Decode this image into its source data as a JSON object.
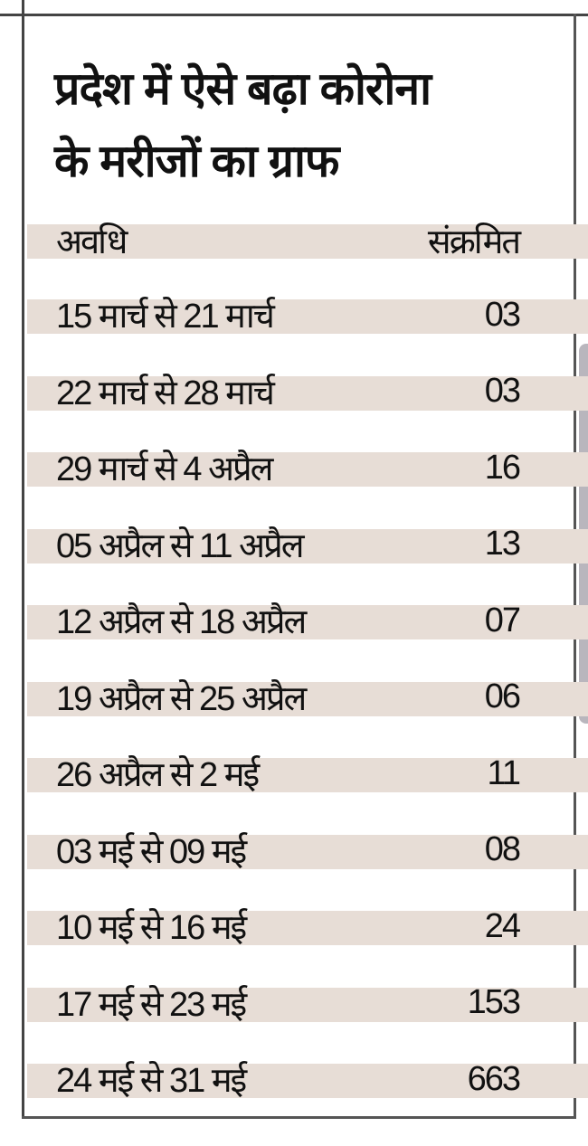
{
  "title_line1": "प्रदेश में ऐसे बढ़ा कोरोना",
  "title_line2": "के मरीजों का ग्राफ",
  "table": {
    "headers": {
      "period": "अवधि",
      "infected": "संक्रमित"
    },
    "rows": [
      {
        "period": "15 मार्च से 21 मार्च",
        "infected": "03"
      },
      {
        "period": "22 मार्च से 28 मार्च",
        "infected": "03"
      },
      {
        "period": "29 मार्च से 4 अप्रैल",
        "infected": "16"
      },
      {
        "period": "05 अप्रैल से 11 अप्रैल",
        "infected": "13"
      },
      {
        "period": "12 अप्रैल से 18 अप्रैल",
        "infected": "07"
      },
      {
        "period": "19 अप्रैल से 25 अप्रैल",
        "infected": "06"
      },
      {
        "period": "26 अप्रैल से 2 मई",
        "infected": "11"
      },
      {
        "period": "03 मई से 09 मई",
        "infected": "08"
      },
      {
        "period": "10 मई से 16 मई",
        "infected": "24"
      },
      {
        "period": "17 मई से 23 मई",
        "infected": "153"
      },
      {
        "period": "24 मई से 31 मई",
        "infected": "663"
      }
    ]
  },
  "colors": {
    "band": "#e7ddd6",
    "border": "#444444"
  }
}
